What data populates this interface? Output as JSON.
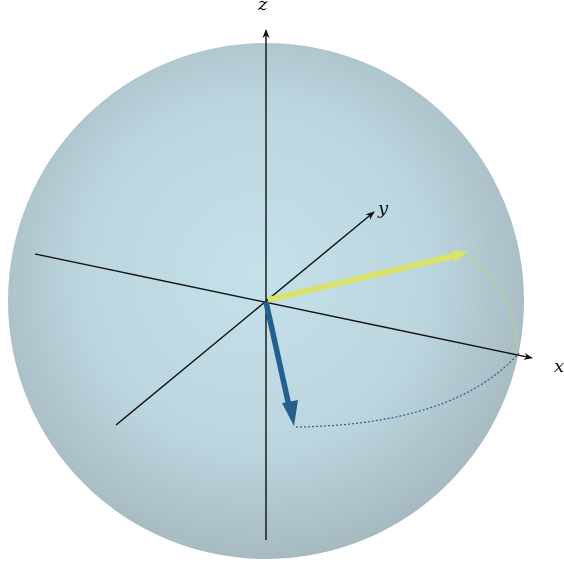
{
  "axes": {
    "x_label": "x",
    "y_label": "y",
    "z_label": "z"
  },
  "colors": {
    "sphere_center": "#c2dde6",
    "sphere_edge": "#a9bcc4",
    "axis_line": "#111111",
    "vector_yellow": "#d9e36a",
    "vector_blue": "#23608f",
    "dotted_yellow": "#c8d85a",
    "dotted_blue": "#2a5f8f"
  }
}
